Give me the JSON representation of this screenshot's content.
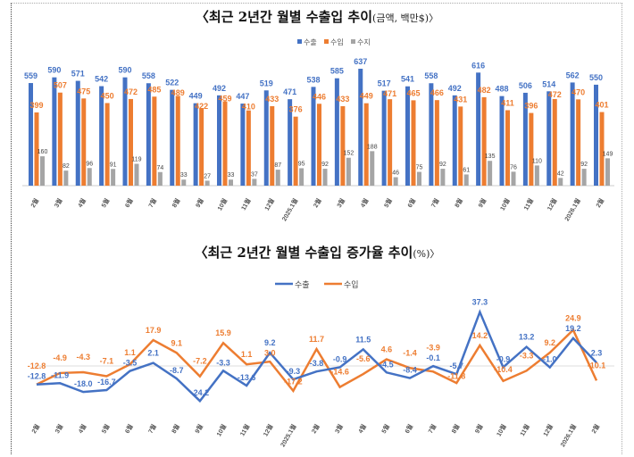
{
  "colors": {
    "export": "#4472C4",
    "import": "#ED7D31",
    "balance": "#A5A5A5"
  },
  "chart_data": [
    {
      "type": "bar",
      "title": "〈최근 2년간 월별 수출입 추이",
      "title_sub": "(금액, 백만$)〉",
      "categories": [
        "2월",
        "3월",
        "4월",
        "5월",
        "6월",
        "7월",
        "8월",
        "9월",
        "10월",
        "11월",
        "12월",
        "2025.1월",
        "2월",
        "3월",
        "4월",
        "5월",
        "6월",
        "7월",
        "8월",
        "9월",
        "10월",
        "11월",
        "12월",
        "2026.1월",
        "2월"
      ],
      "series": [
        {
          "name": "수출",
          "values": [
            559,
            590,
            571,
            542,
            590,
            558,
            522,
            449,
            492,
            447,
            519,
            471,
            538,
            585,
            637,
            517,
            541,
            558,
            492,
            616,
            488,
            506,
            514,
            562,
            550
          ]
        },
        {
          "name": "수입",
          "values": [
            399,
            507,
            475,
            450,
            472,
            485,
            489,
            422,
            459,
            410,
            433,
            376,
            446,
            433,
            449,
            471,
            465,
            466,
            431,
            482,
            411,
            396,
            472,
            470,
            401
          ]
        },
        {
          "name": "수지",
          "values": [
            160,
            82,
            96,
            91,
            119,
            74,
            33,
            27,
            33,
            37,
            87,
            95,
            92,
            152,
            188,
            46,
            75,
            92,
            61,
            135,
            76,
            110,
            42,
            92,
            149
          ]
        }
      ],
      "legend": "top-right",
      "grid": false,
      "ylim": [
        0,
        650
      ]
    },
    {
      "type": "line",
      "title": "〈최근 2년간 월별 수출입 증가율 추이",
      "title_sub": "(%)〉",
      "categories": [
        "2월",
        "3월",
        "4월",
        "5월",
        "6월",
        "7월",
        "8월",
        "9월",
        "10월",
        "11월",
        "12월",
        "2025.1월",
        "2월",
        "3월",
        "4월",
        "5월",
        "6월",
        "7월",
        "8월",
        "9월",
        "10월",
        "11월",
        "12월",
        "2026.1월",
        "2월"
      ],
      "series": [
        {
          "name": "수출",
          "values": [
            -12.8,
            -11.9,
            -18.0,
            -16.7,
            -3.5,
            2.1,
            -8.7,
            -24.2,
            -3.3,
            -13.6,
            9.2,
            -9.3,
            -3.8,
            -0.9,
            11.5,
            -4.5,
            -8.4,
            -0.1,
            -5.7,
            37.3,
            -0.9,
            13.2,
            -1.0,
            19.2,
            2.3
          ]
        },
        {
          "name": "수입",
          "values": [
            -12.8,
            -4.9,
            -4.3,
            -7.1,
            1.1,
            17.9,
            9.1,
            -7.2,
            15.9,
            1.1,
            3.0,
            -17.2,
            11.7,
            -14.6,
            -5.6,
            4.6,
            -1.4,
            -3.9,
            -11.8,
            14.2,
            -10.4,
            -3.3,
            9.2,
            24.9,
            -10.1
          ]
        }
      ],
      "legend": "top-center",
      "grid": false,
      "ylim": [
        -30,
        40
      ]
    }
  ]
}
